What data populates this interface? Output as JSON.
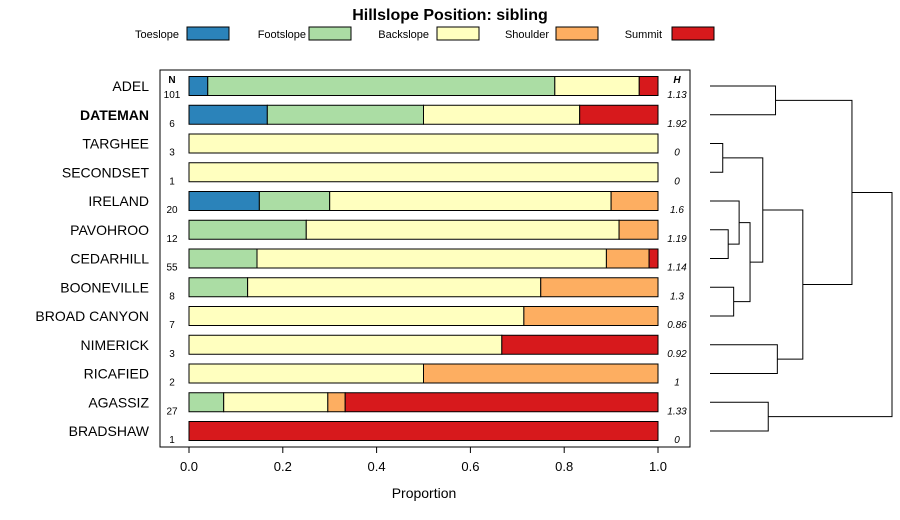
{
  "chart_data": {
    "type": "bar",
    "orientation": "horizontal",
    "stacked": true,
    "title": "Hillslope Position: sibling",
    "xlabel": "Proportion",
    "ylabel": "",
    "xlim": [
      0,
      1
    ],
    "xticks": [
      "0.0",
      "0.2",
      "0.4",
      "0.6",
      "0.8",
      "1.0"
    ],
    "n_header": "N",
    "h_header": "H",
    "legend": [
      {
        "name": "Toeslope",
        "color": "#2B83BA"
      },
      {
        "name": "Footslope",
        "color": "#ABDDA4"
      },
      {
        "name": "Backslope",
        "color": "#FFFFBF"
      },
      {
        "name": "Shoulder",
        "color": "#FDAE61"
      },
      {
        "name": "Summit",
        "color": "#D7191C"
      }
    ],
    "categories": [
      "ADEL",
      "DATEMAN",
      "TARGHEE",
      "SECONDSET",
      "IRELAND",
      "PAVOHROO",
      "CEDARHILL",
      "BOONEVILLE",
      "BROAD CANYON",
      "NIMERICK",
      "RICAFIED",
      "AGASSIZ",
      "BRADSHAW"
    ],
    "highlight": "DATEMAN",
    "n": [
      "101",
      "6",
      "3",
      "1",
      "20",
      "12",
      "55",
      "8",
      "7",
      "3",
      "2",
      "27",
      "1"
    ],
    "h": [
      "1.13",
      "1.92",
      "0",
      "0",
      "1.6",
      "1.19",
      "1.14",
      "1.3",
      "0.86",
      "0.92",
      "1",
      "1.33",
      "0"
    ],
    "series": [
      {
        "name": "Toeslope",
        "values": [
          0.04,
          0.167,
          0,
          0,
          0.15,
          0,
          0,
          0,
          0,
          0,
          0,
          0,
          0
        ]
      },
      {
        "name": "Footslope",
        "values": [
          0.74,
          0.333,
          0,
          0,
          0.15,
          0.25,
          0.145,
          0.125,
          0,
          0,
          0,
          0.074,
          0
        ]
      },
      {
        "name": "Backslope",
        "values": [
          0.18,
          0.333,
          1,
          1,
          0.6,
          0.667,
          0.745,
          0.625,
          0.714,
          0.667,
          0.5,
          0.222,
          0
        ]
      },
      {
        "name": "Shoulder",
        "values": [
          0,
          0,
          0,
          0,
          0.1,
          0.083,
          0.091,
          0.25,
          0.286,
          0,
          0.5,
          0.037,
          0
        ]
      },
      {
        "name": "Summit",
        "values": [
          0.04,
          0.167,
          0,
          0,
          0,
          0,
          0.019,
          0,
          0,
          0.333,
          0,
          0.667,
          1
        ]
      }
    ],
    "dendrogram": {
      "type": "hierarchical-clustering",
      "leaves": [
        "ADEL",
        "DATEMAN",
        "TARGHEE",
        "SECONDSET",
        "IRELAND",
        "PAVOHROO",
        "CEDARHILL",
        "BOONEVILLE",
        "BROAD CANYON",
        "NIMERICK",
        "RICAFIED",
        "AGASSIZ",
        "BRADSHAW"
      ],
      "merges": [
        {
          "a": "ADEL",
          "b": "DATEMAN",
          "height": 0.36
        },
        {
          "a": "TARGHEE",
          "b": "SECONDSET",
          "height": 0.07
        },
        {
          "a": "PAVOHROO",
          "b": "CEDARHILL",
          "height": 0.1
        },
        {
          "a": "IRELAND",
          "b": "PAVOHROO+CEDARHILL",
          "height": 0.16
        },
        {
          "a": "BOONEVILLE",
          "b": "BROAD CANYON",
          "height": 0.13
        },
        {
          "a": "IRELAND+PAVOHROO+CEDARHILL",
          "b": "BOONEVILLE+BROAD CANYON",
          "height": 0.22
        },
        {
          "a": "TARGHEE+SECONDSET",
          "b": "IRELAND..BROAD CANYON",
          "height": 0.29
        },
        {
          "a": "NIMERICK",
          "b": "RICAFIED",
          "height": 0.37
        },
        {
          "a": "TARGHEE..BROAD CANYON",
          "b": "NIMERICK+RICAFIED",
          "height": 0.51
        },
        {
          "a": "AGASSIZ",
          "b": "BRADSHAW",
          "height": 0.32
        },
        {
          "a": "ADEL+DATEMAN",
          "b": "TARGHEE..RICAFIED",
          "height": 0.78
        },
        {
          "a": "ADEL..RICAFIED",
          "b": "AGASSIZ+BRADSHAW",
          "height": 1.0
        }
      ]
    }
  }
}
